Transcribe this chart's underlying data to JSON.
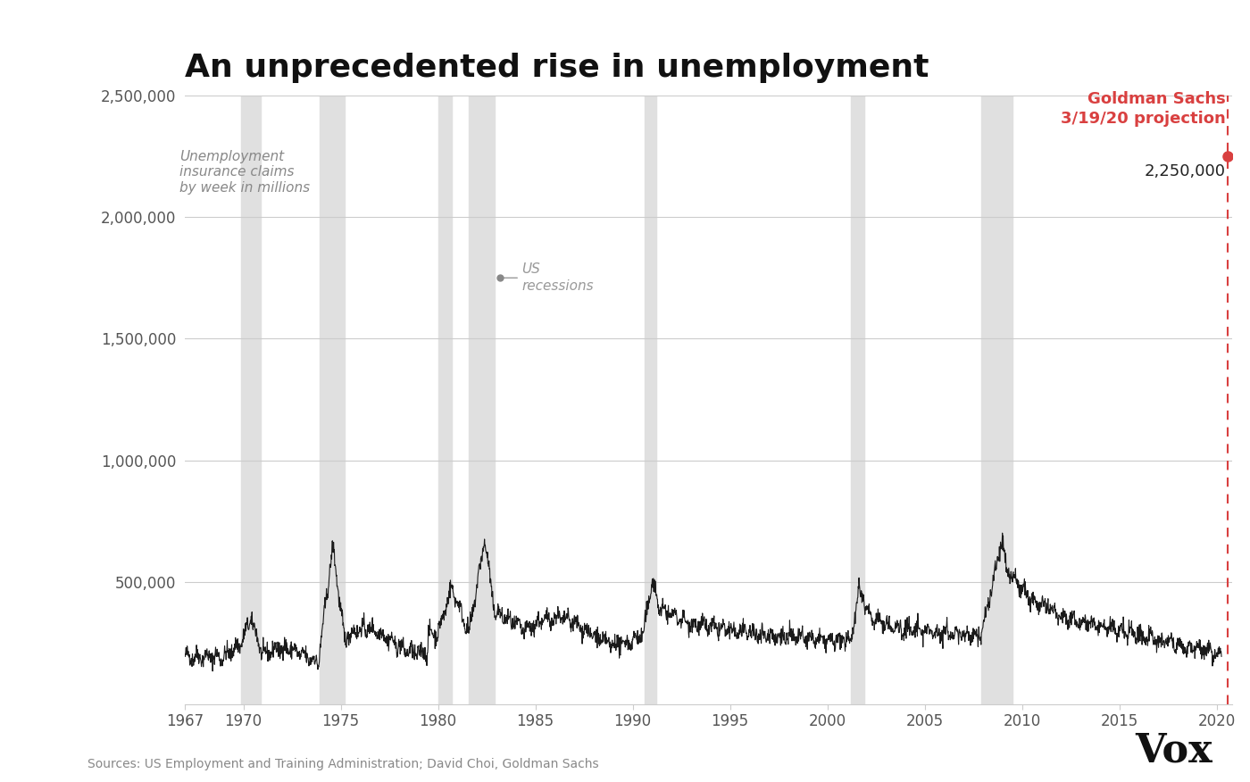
{
  "title": "An unprecedented rise in unemployment",
  "ylabel": "Unemployment\ninsurance claims\nby week in millions",
  "source": "Sources: US Employment and Training Administration; David Choi, Goldman Sachs",
  "title_fontsize": 26,
  "background_color": "#ffffff",
  "recession_color": "#e0e0e0",
  "line_color": "#1a1a1a",
  "projection_color": "#d94040",
  "projection_value": 2250000,
  "ylim": [
    0,
    2500000
  ],
  "yticks": [
    500000,
    1000000,
    1500000,
    2000000,
    2500000
  ],
  "ytick_labels": [
    "500,000",
    "1,000,000",
    "1,500,000",
    "2,000,000",
    "2,500,000"
  ],
  "xlim_start": 1967,
  "xlim_end": 2020.8,
  "xticks": [
    1967,
    1970,
    1975,
    1980,
    1985,
    1990,
    1995,
    2000,
    2005,
    2010,
    2015,
    2020
  ],
  "recession_bands": [
    [
      1969.9,
      1970.9
    ],
    [
      1973.9,
      1975.2
    ],
    [
      1980.0,
      1980.7
    ],
    [
      1981.6,
      1982.9
    ],
    [
      1990.6,
      1991.2
    ],
    [
      2001.2,
      2001.9
    ],
    [
      2007.9,
      2009.5
    ]
  ],
  "annotation_goldman": "Goldman Sachs\n3/19/20 projection",
  "annotation_value": "2,250,000",
  "vox_text": "Vox"
}
